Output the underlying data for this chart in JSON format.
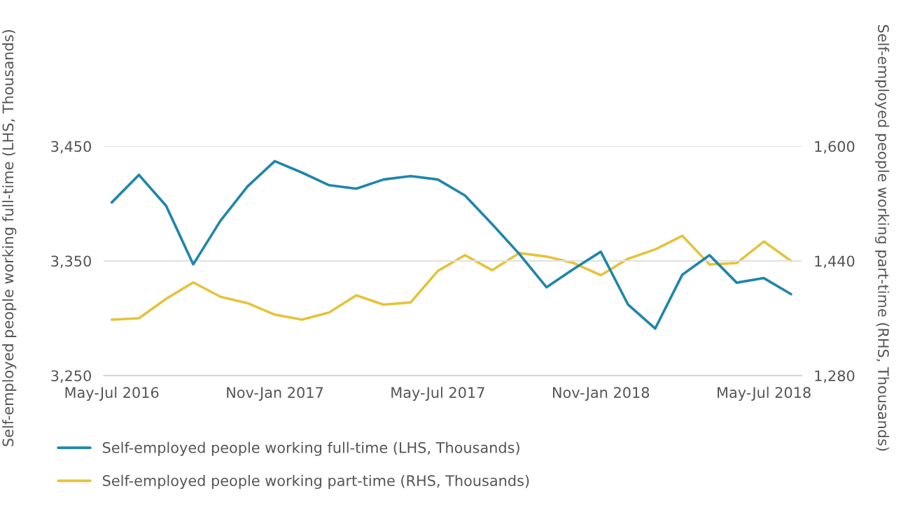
{
  "chart_data": {
    "type": "line",
    "categories": [
      "May-Jul 2016",
      null,
      null,
      null,
      null,
      null,
      "Nov-Jan 2017",
      null,
      null,
      null,
      null,
      null,
      "May-Jul 2017",
      null,
      null,
      null,
      null,
      null,
      "Nov-Jan 2018",
      null,
      null,
      null,
      null,
      null,
      "May-Jul 2018",
      null
    ],
    "series": [
      {
        "name": "Self-employed people working full-time (LHS, Thousands)",
        "color": "#1f86aa",
        "values": [
          3401,
          3425,
          3398,
          3347,
          3385,
          3415,
          3437,
          3427,
          3416,
          3413,
          3421,
          3424,
          3421,
          3407,
          3382,
          3356,
          3327,
          3343,
          3358,
          3312,
          3291,
          3338,
          3355,
          3331,
          3335,
          3321
        ]
      },
      {
        "name": "Self-employed people working part-time (RHS, Thousands)",
        "color": "#e5c33a",
        "axis": "y2",
        "values": [
          1358,
          1360,
          1387,
          1410,
          1390,
          1381,
          1365,
          1358,
          1368,
          1392,
          1379,
          1382,
          1426,
          1448,
          1427,
          1451,
          1446,
          1437,
          1420,
          1443,
          1456,
          1475,
          1435,
          1437,
          1467,
          1440
        ]
      }
    ],
    "ylabel": "Self-employed people working full-time (LHS, Thousands)",
    "y2label": "Self-employed people working part-time (RHS, Thousands)",
    "ylim": [
      3250,
      3450
    ],
    "yticks": [
      {
        "value": 3250,
        "label": "3,250"
      },
      {
        "value": 3350,
        "label": "3,350"
      },
      {
        "value": 3450,
        "label": "3,450"
      }
    ],
    "y2lim": [
      1280,
      1600
    ],
    "y2ticks": [
      {
        "value": 1280,
        "label": "1,280"
      },
      {
        "value": 1440,
        "label": "1,440"
      },
      {
        "value": 1600,
        "label": "1,600"
      }
    ],
    "grid": "y",
    "legend": "bottom",
    "marker": "none",
    "line_style": "solid"
  }
}
